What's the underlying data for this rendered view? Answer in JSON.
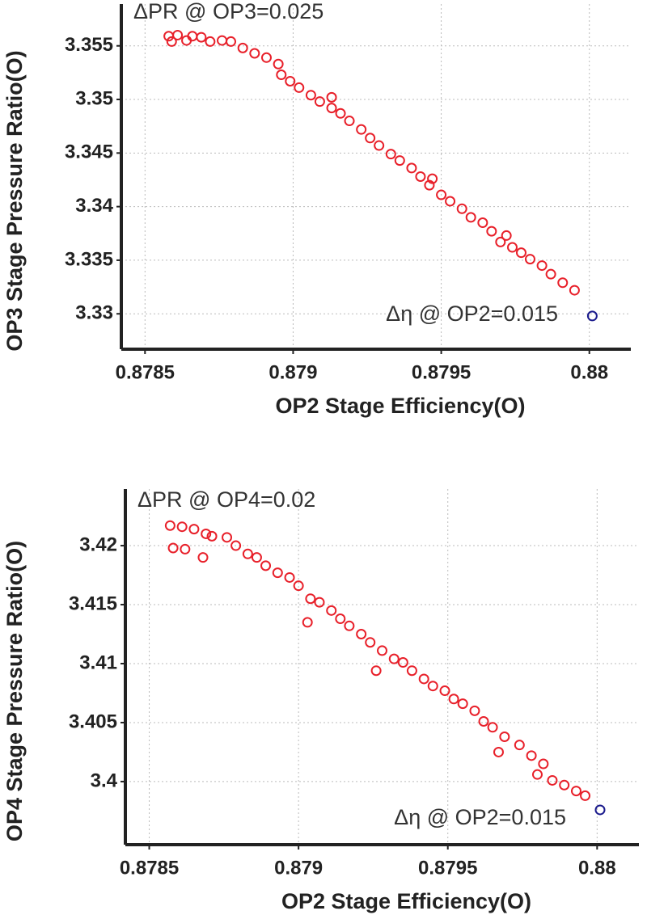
{
  "chart_data": [
    {
      "type": "scatter",
      "x_label": "OP2 Stage Efficiency(O)",
      "y_label": "OP3 Stage Pressure Ratio(O)",
      "annotations": [
        "ΔPR @ OP3=0.025",
        "Δη @ OP2=0.015"
      ],
      "xlim": [
        0.87842,
        0.88014
      ],
      "ylim": [
        3.3267,
        3.3589
      ],
      "xticks": [
        0.8785,
        0.879,
        0.8795,
        0.88
      ],
      "yticks": [
        3.33,
        3.335,
        3.34,
        3.345,
        3.35,
        3.355
      ],
      "grid": true,
      "series": [
        {
          "color": "#e8202a",
          "x": [
            0.87858,
            0.87859,
            0.87861,
            0.87864,
            0.87866,
            0.87869,
            0.87872,
            0.87876,
            0.87879,
            0.87883,
            0.87887,
            0.87891,
            0.87895,
            0.87896,
            0.87899,
            0.87902,
            0.87906,
            0.87909,
            0.87913,
            0.87916,
            0.87919,
            0.87923,
            0.87926,
            0.87929,
            0.87933,
            0.87936,
            0.8794,
            0.87943,
            0.87946,
            0.8795,
            0.87953,
            0.87957,
            0.8796,
            0.87964,
            0.87967,
            0.8797,
            0.87974,
            0.87977,
            0.8798,
            0.87984,
            0.87987,
            0.87991,
            0.87995,
            0.87972,
            0.87947,
            0.87913
          ],
          "values": [
            3.3559,
            3.3554,
            3.356,
            3.3555,
            3.3559,
            3.3558,
            3.3554,
            3.3555,
            3.3554,
            3.3548,
            3.3543,
            3.3539,
            3.3533,
            3.3523,
            3.3517,
            3.3511,
            3.3504,
            3.3498,
            3.3492,
            3.3487,
            3.348,
            3.3472,
            3.3464,
            3.3457,
            3.3449,
            3.3443,
            3.3436,
            3.3428,
            3.342,
            3.3411,
            3.3405,
            3.3398,
            3.339,
            3.3385,
            3.3377,
            3.3367,
            3.3362,
            3.3357,
            3.3351,
            3.3345,
            3.3337,
            3.3329,
            3.3322,
            3.3373,
            3.3426,
            3.3502
          ]
        },
        {
          "color": "#1a1a8c",
          "x": [
            0.88001
          ],
          "values": [
            3.3298
          ]
        }
      ]
    },
    {
      "type": "scatter",
      "x_label": "OP2 Stage Efficiency(O)",
      "y_label": "OP4 Stage Pressure Ratio(O)",
      "annotations": [
        "ΔPR @ OP4=0.02",
        "Δη @ OP2=0.015"
      ],
      "xlim": [
        0.87842,
        0.88014
      ],
      "ylim": [
        3.39465,
        3.4248
      ],
      "xticks": [
        0.8785,
        0.879,
        0.8795,
        0.88
      ],
      "yticks": [
        3.4,
        3.405,
        3.41,
        3.415,
        3.42
      ],
      "grid": true,
      "series": [
        {
          "color": "#e8202a",
          "x": [
            0.87857,
            0.87861,
            0.87865,
            0.87869,
            0.87858,
            0.87862,
            0.87868,
            0.87871,
            0.87876,
            0.87879,
            0.87883,
            0.87886,
            0.87889,
            0.87893,
            0.87897,
            0.879,
            0.87904,
            0.87907,
            0.87911,
            0.87914,
            0.87917,
            0.87921,
            0.87924,
            0.87926,
            0.87928,
            0.87932,
            0.87935,
            0.87938,
            0.87942,
            0.87945,
            0.87949,
            0.87952,
            0.87955,
            0.87959,
            0.87962,
            0.87965,
            0.87967,
            0.87969,
            0.87974,
            0.87978,
            0.8798,
            0.87982,
            0.87985,
            0.87989,
            0.87993,
            0.87996,
            0.87903
          ],
          "values": [
            3.4217,
            3.4216,
            3.4214,
            3.421,
            3.4198,
            3.4197,
            3.419,
            3.4208,
            3.4207,
            3.42,
            3.4193,
            3.419,
            3.4183,
            3.4177,
            3.4173,
            3.4166,
            3.4155,
            3.4152,
            3.4145,
            3.4138,
            3.4132,
            3.4125,
            3.4118,
            3.4094,
            3.4111,
            3.4104,
            3.4101,
            3.4094,
            3.4087,
            3.4081,
            3.4077,
            3.407,
            3.4066,
            3.406,
            3.4051,
            3.4046,
            3.4025,
            3.4038,
            3.4031,
            3.4022,
            3.4006,
            3.4015,
            3.4001,
            3.3997,
            3.3992,
            3.3988,
            3.4135
          ]
        },
        {
          "color": "#1a1a8c",
          "x": [
            0.88001
          ],
          "values": [
            3.3976
          ]
        }
      ]
    }
  ]
}
